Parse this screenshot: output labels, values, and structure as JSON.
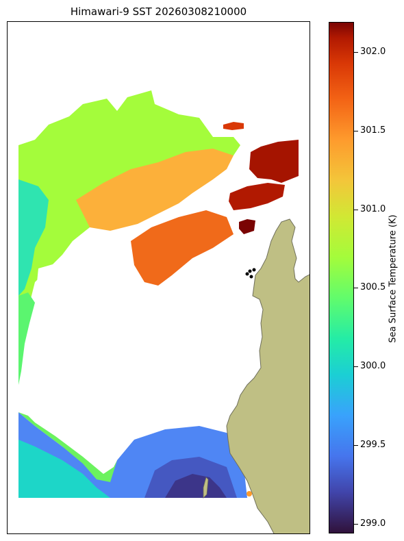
{
  "title": "Himawari-9 SST 20260308210000",
  "colorbar": {
    "label": "Sea Surface Temperature (K)",
    "min": 298.94,
    "max": 302.19,
    "ticks": [
      "299.0",
      "299.5",
      "300.0",
      "300.5",
      "301.0",
      "301.5",
      "302.0"
    ]
  },
  "colors": {
    "land": "#bfbf84",
    "coast": "#6e6e5a",
    "cold": "#30123b",
    "warm": "#7a0403"
  }
}
